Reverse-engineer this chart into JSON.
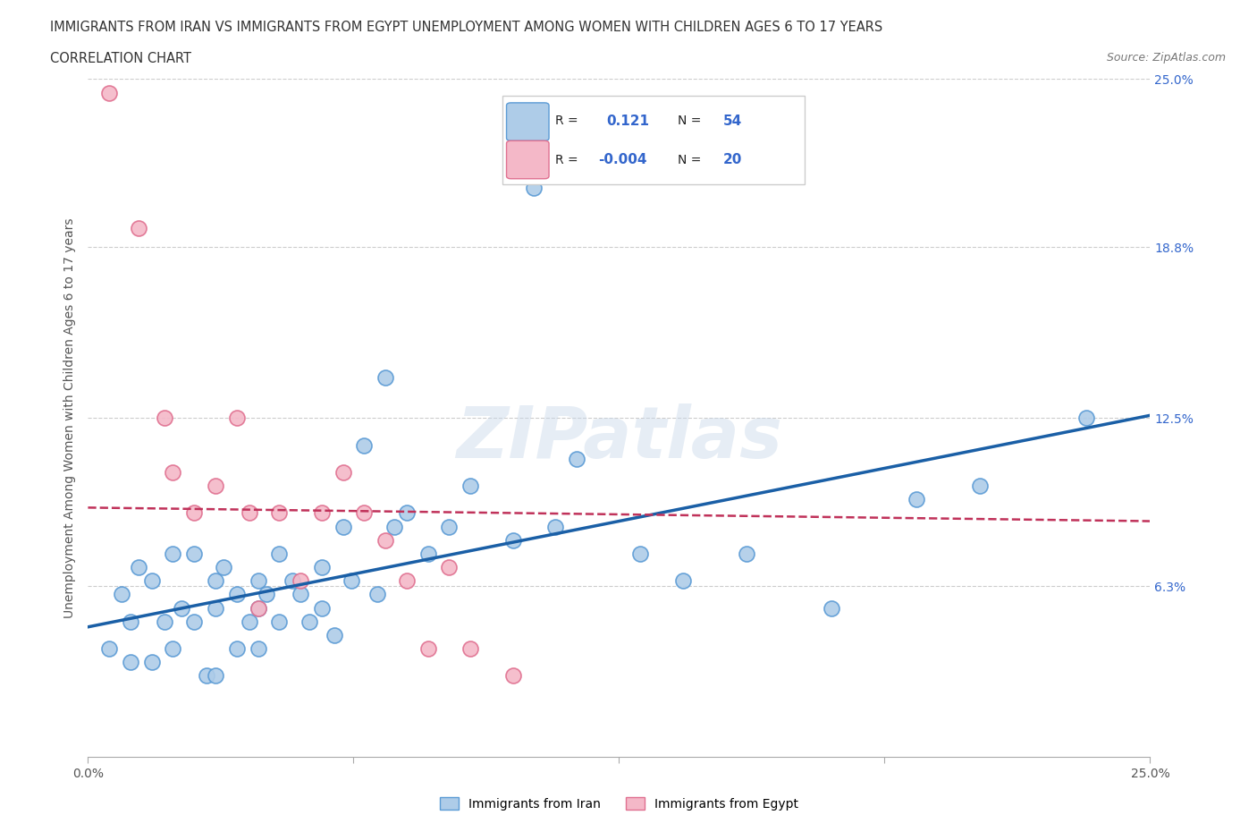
{
  "title_line1": "IMMIGRANTS FROM IRAN VS IMMIGRANTS FROM EGYPT UNEMPLOYMENT AMONG WOMEN WITH CHILDREN AGES 6 TO 17 YEARS",
  "title_line2": "CORRELATION CHART",
  "source_text": "Source: ZipAtlas.com",
  "ylabel": "Unemployment Among Women with Children Ages 6 to 17 years",
  "xlim": [
    0.0,
    0.25
  ],
  "ylim": [
    0.0,
    0.25
  ],
  "xtick_vals": [
    0.0,
    0.0625,
    0.125,
    0.1875,
    0.25
  ],
  "xtick_labels": [
    "0.0%",
    "",
    "",
    "",
    "25.0%"
  ],
  "ytick_vals": [
    0.0,
    0.063,
    0.125,
    0.188,
    0.25
  ],
  "hgrid_vals": [
    0.063,
    0.125,
    0.188,
    0.25
  ],
  "iran_color": "#aecce8",
  "iran_edge_color": "#5b9bd5",
  "egypt_color": "#f4b8c8",
  "egypt_edge_color": "#e07090",
  "iran_line_color": "#1a5fa6",
  "egypt_line_color": "#c0325a",
  "watermark": "ZIPatlas",
  "iran_scatter_x": [
    0.005,
    0.008,
    0.01,
    0.01,
    0.012,
    0.015,
    0.015,
    0.018,
    0.02,
    0.02,
    0.022,
    0.025,
    0.025,
    0.028,
    0.03,
    0.03,
    0.03,
    0.032,
    0.035,
    0.035,
    0.038,
    0.04,
    0.04,
    0.04,
    0.042,
    0.045,
    0.045,
    0.048,
    0.05,
    0.052,
    0.055,
    0.055,
    0.058,
    0.06,
    0.062,
    0.065,
    0.068,
    0.07,
    0.072,
    0.075,
    0.08,
    0.085,
    0.09,
    0.1,
    0.105,
    0.11,
    0.115,
    0.13,
    0.14,
    0.155,
    0.175,
    0.195,
    0.21,
    0.235
  ],
  "iran_scatter_y": [
    0.04,
    0.06,
    0.05,
    0.035,
    0.07,
    0.065,
    0.035,
    0.05,
    0.075,
    0.04,
    0.055,
    0.075,
    0.05,
    0.03,
    0.065,
    0.055,
    0.03,
    0.07,
    0.06,
    0.04,
    0.05,
    0.065,
    0.055,
    0.04,
    0.06,
    0.075,
    0.05,
    0.065,
    0.06,
    0.05,
    0.07,
    0.055,
    0.045,
    0.085,
    0.065,
    0.115,
    0.06,
    0.14,
    0.085,
    0.09,
    0.075,
    0.085,
    0.1,
    0.08,
    0.21,
    0.085,
    0.11,
    0.075,
    0.065,
    0.075,
    0.055,
    0.095,
    0.1,
    0.125
  ],
  "egypt_scatter_x": [
    0.005,
    0.012,
    0.018,
    0.02,
    0.025,
    0.03,
    0.035,
    0.038,
    0.04,
    0.045,
    0.05,
    0.055,
    0.06,
    0.065,
    0.07,
    0.075,
    0.08,
    0.085,
    0.09,
    0.1
  ],
  "egypt_scatter_y": [
    0.245,
    0.195,
    0.125,
    0.105,
    0.09,
    0.1,
    0.125,
    0.09,
    0.055,
    0.09,
    0.065,
    0.09,
    0.105,
    0.09,
    0.08,
    0.065,
    0.04,
    0.07,
    0.04,
    0.03
  ],
  "iran_trend_x0": 0.0,
  "iran_trend_x1": 0.25,
  "iran_trend_y0": 0.048,
  "iran_trend_y1": 0.126,
  "egypt_trend_x0": 0.0,
  "egypt_trend_x1": 0.25,
  "egypt_trend_y0": 0.092,
  "egypt_trend_y1": 0.087
}
